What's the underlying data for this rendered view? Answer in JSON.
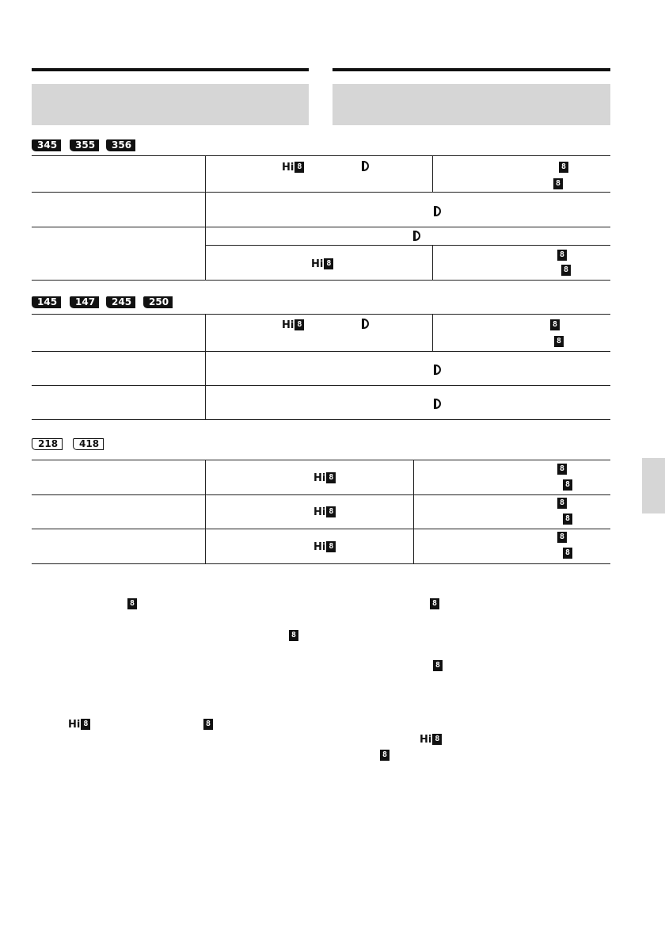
{
  "sections": [
    {
      "models": [
        "345",
        "355",
        "356"
      ],
      "style": "filled"
    },
    {
      "models": [
        "145",
        "147",
        "245",
        "250"
      ],
      "style": "filled"
    },
    {
      "models": [
        "218",
        "418"
      ],
      "style": "outline"
    }
  ],
  "icons": {
    "hi": "Hi",
    "eight": "8",
    "hi8": "Hi8 format icon",
    "video8": "Video8 format icon",
    "digital": "D playback icon"
  },
  "colors": {
    "header_bar": "#111111",
    "header_box": "#d6d6d6",
    "side_tab": "#d6d6d6"
  }
}
